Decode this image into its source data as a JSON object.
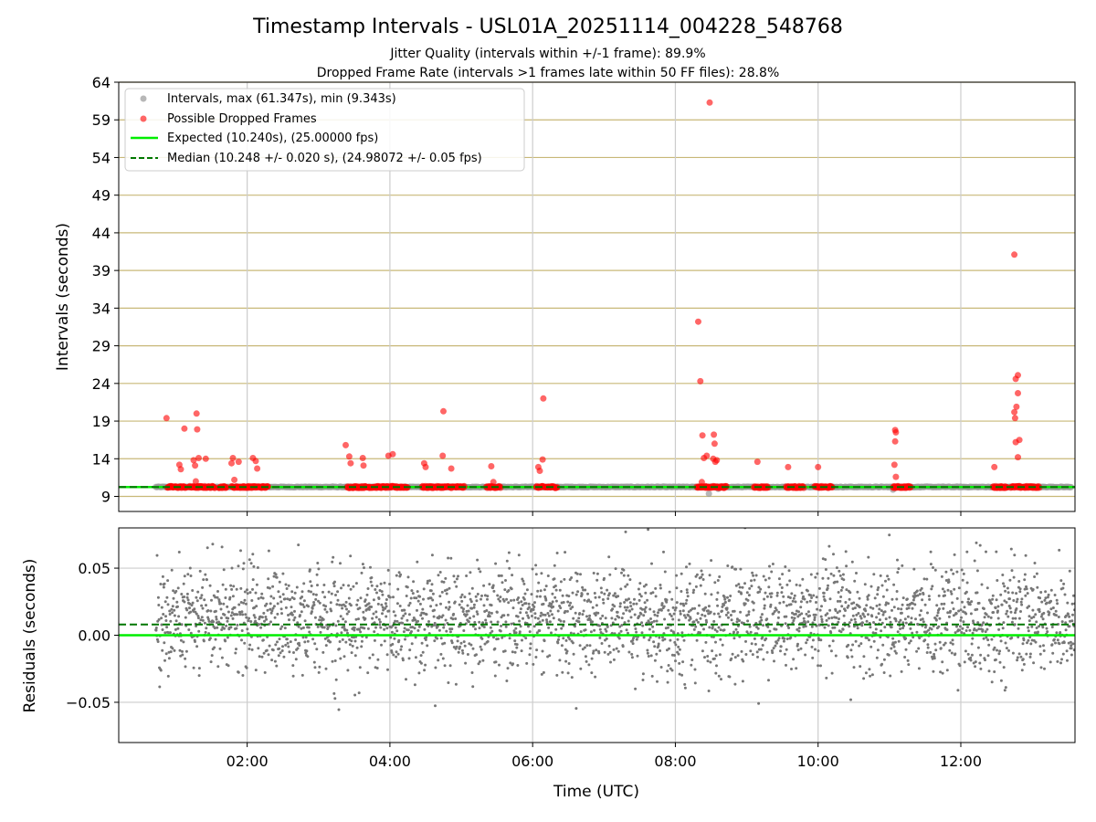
{
  "chart_data": {
    "type": "scatter",
    "title": "Timestamp Intervals - USL01A_20251114_004228_548768",
    "subtitles": [
      "Jitter Quality (intervals within +/-1 frame): 89.9%",
      "Dropped Frame Rate (intervals >1 frames late within 50 FF files): 28.8%"
    ],
    "xlabel": "Time (UTC)",
    "x_tick_labels": [
      "02:00",
      "04:00",
      "06:00",
      "08:00",
      "10:00",
      "12:00"
    ],
    "x_tick_values_hours": [
      2,
      4,
      6,
      8,
      10,
      12
    ],
    "xlim_hours": [
      0.2,
      13.6
    ],
    "top_panel": {
      "ylabel": "Intervals (seconds)",
      "ylim": [
        7,
        64
      ],
      "y_ticks": [
        9,
        14,
        19,
        24,
        29,
        34,
        39,
        44,
        49,
        54,
        59,
        64
      ],
      "legend": [
        "Intervals, max (61.347s), min (9.343s)",
        "Possible Dropped Frames",
        "Expected (10.240s), (25.00000 fps)",
        "Median (10.248 +/- 0.020 s), (24.98072 +/- 0.05 fps)"
      ],
      "series": [
        {
          "name": "Intervals",
          "color": "#999999",
          "x_range_hours": [
            0.72,
            13.55
          ],
          "y_band": [
            10.2,
            10.3
          ]
        },
        {
          "name": "Possible Dropped Frames",
          "color": "#ff0000",
          "dense_clusters_y": 10.24,
          "dense_clusters_hours": [
            [
              0.88,
              1.15
            ],
            [
              1.18,
              1.55
            ],
            [
              1.6,
              1.72
            ],
            [
              1.78,
              2.3
            ],
            [
              3.4,
              3.98
            ],
            [
              4.0,
              4.25
            ],
            [
              4.45,
              5.05
            ],
            [
              5.35,
              5.55
            ],
            [
              6.05,
              6.35
            ],
            [
              8.3,
              8.72
            ],
            [
              9.1,
              9.3
            ],
            [
              9.55,
              9.8
            ],
            [
              9.95,
              10.2
            ],
            [
              11.05,
              11.3
            ],
            [
              12.45,
              12.65
            ],
            [
              12.7,
              13.1
            ]
          ],
          "outliers": [
            {
              "x": 0.87,
              "y": 19.4
            },
            {
              "x": 1.05,
              "y": 13.2
            },
            {
              "x": 1.07,
              "y": 12.6
            },
            {
              "x": 1.12,
              "y": 18.0
            },
            {
              "x": 1.25,
              "y": 13.8
            },
            {
              "x": 1.27,
              "y": 13.1
            },
            {
              "x": 1.29,
              "y": 20.0
            },
            {
              "x": 1.3,
              "y": 17.9
            },
            {
              "x": 1.32,
              "y": 14.1
            },
            {
              "x": 1.28,
              "y": 11.0
            },
            {
              "x": 1.42,
              "y": 14.0
            },
            {
              "x": 1.78,
              "y": 13.4
            },
            {
              "x": 1.8,
              "y": 14.1
            },
            {
              "x": 1.82,
              "y": 11.2
            },
            {
              "x": 1.88,
              "y": 13.6
            },
            {
              "x": 2.08,
              "y": 14.1
            },
            {
              "x": 2.12,
              "y": 13.7
            },
            {
              "x": 2.14,
              "y": 12.7
            },
            {
              "x": 3.38,
              "y": 15.8
            },
            {
              "x": 3.43,
              "y": 14.3
            },
            {
              "x": 3.45,
              "y": 13.4
            },
            {
              "x": 3.62,
              "y": 14.1
            },
            {
              "x": 3.63,
              "y": 13.1
            },
            {
              "x": 3.98,
              "y": 14.4
            },
            {
              "x": 4.04,
              "y": 14.6
            },
            {
              "x": 4.48,
              "y": 13.4
            },
            {
              "x": 4.5,
              "y": 12.9
            },
            {
              "x": 4.75,
              "y": 20.3
            },
            {
              "x": 4.74,
              "y": 14.4
            },
            {
              "x": 4.86,
              "y": 12.7
            },
            {
              "x": 5.42,
              "y": 13.0
            },
            {
              "x": 5.45,
              "y": 10.9
            },
            {
              "x": 6.08,
              "y": 12.9
            },
            {
              "x": 6.1,
              "y": 12.4
            },
            {
              "x": 6.14,
              "y": 13.9
            },
            {
              "x": 6.15,
              "y": 22.0
            },
            {
              "x": 8.32,
              "y": 32.2
            },
            {
              "x": 8.35,
              "y": 24.3
            },
            {
              "x": 8.38,
              "y": 17.1
            },
            {
              "x": 8.4,
              "y": 14.1
            },
            {
              "x": 8.44,
              "y": 14.4
            },
            {
              "x": 8.48,
              "y": 61.3
            },
            {
              "x": 8.54,
              "y": 17.2
            },
            {
              "x": 8.55,
              "y": 16.0
            },
            {
              "x": 8.53,
              "y": 14.0
            },
            {
              "x": 8.56,
              "y": 13.6
            },
            {
              "x": 8.58,
              "y": 13.8
            },
            {
              "x": 8.37,
              "y": 10.9
            },
            {
              "x": 9.15,
              "y": 13.6
            },
            {
              "x": 9.58,
              "y": 12.9
            },
            {
              "x": 10.0,
              "y": 12.9
            },
            {
              "x": 11.08,
              "y": 17.8
            },
            {
              "x": 11.09,
              "y": 17.5
            },
            {
              "x": 11.08,
              "y": 16.3
            },
            {
              "x": 11.07,
              "y": 13.2
            },
            {
              "x": 11.09,
              "y": 11.6
            },
            {
              "x": 12.47,
              "y": 12.9
            },
            {
              "x": 12.75,
              "y": 41.1
            },
            {
              "x": 12.77,
              "y": 24.6
            },
            {
              "x": 12.8,
              "y": 25.1
            },
            {
              "x": 12.8,
              "y": 22.7
            },
            {
              "x": 12.78,
              "y": 20.9
            },
            {
              "x": 12.75,
              "y": 20.2
            },
            {
              "x": 12.76,
              "y": 19.4
            },
            {
              "x": 12.77,
              "y": 16.2
            },
            {
              "x": 12.82,
              "y": 16.5
            },
            {
              "x": 12.8,
              "y": 14.2
            }
          ]
        },
        {
          "name": "Expected",
          "style": "solid",
          "color": "#00ee00",
          "y": 10.24
        },
        {
          "name": "Median",
          "style": "dashed",
          "color": "#007700",
          "y": 10.248
        }
      ],
      "gridlines": "horizontal gridlines at y ticks, vertical gridlines at x ticks"
    },
    "bottom_panel": {
      "ylabel": "Residuals (seconds)",
      "ylim": [
        -0.08,
        0.08
      ],
      "y_tick_labels": [
        "0.05",
        "0.00",
        "−0.05"
      ],
      "y_tick_values": [
        0.05,
        0.0,
        -0.05
      ],
      "series": [
        {
          "name": "Residuals",
          "color": "#777777",
          "x_range_hours": [
            0.72,
            13.6
          ],
          "typical_range": [
            -0.03,
            0.06
          ]
        },
        {
          "name": "Expected (zero)",
          "style": "solid",
          "color": "#00ee00",
          "y": 0.0
        },
        {
          "name": "Median offset",
          "style": "dashed",
          "color": "#007700",
          "y": 0.008
        }
      ]
    }
  }
}
